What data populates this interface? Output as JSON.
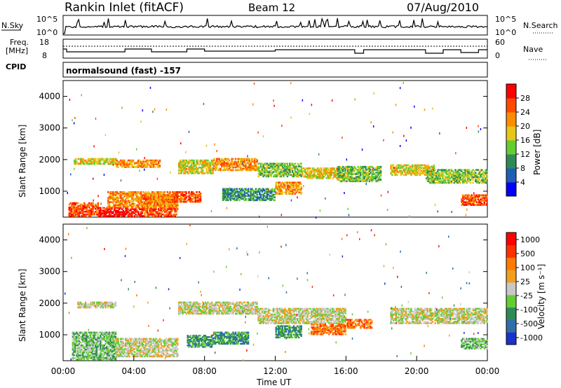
{
  "header": {
    "station": "Rankin Inlet (fitACF)",
    "beam": "Beam 12",
    "date": "07/Aug/2010"
  },
  "noise_panel": {
    "left_label": "N.Sky",
    "right_label": "N.Search",
    "left_ticks": [
      "10^5",
      "10^0"
    ],
    "right_ticks": [
      "10^5",
      "10^0"
    ]
  },
  "freq_panel": {
    "left_label": "Freq.",
    "left_unit": "[MHz]",
    "right_label": "Nave",
    "left_ticks": [
      "18",
      "8"
    ],
    "right_ticks": [
      "60",
      "0"
    ]
  },
  "cpid_panel": {
    "label": "CPID",
    "text": "normalsound (fast) -157"
  },
  "x_axis": {
    "title": "Time UT",
    "ticks": [
      "00:00",
      "04:00",
      "08:00",
      "12:00",
      "16:00",
      "20:00",
      "00:00"
    ]
  },
  "chart_data": [
    {
      "type": "heatmap",
      "name": "power",
      "ylabel": "Slant Range [km]",
      "yticks": [
        1000,
        2000,
        3000,
        4000
      ],
      "ylim": [
        180,
        4500
      ],
      "xlim_hours": [
        0,
        24
      ],
      "colorbar": {
        "title": "Power [dB]",
        "labels": [
          "4",
          "8",
          "12",
          "16",
          "20",
          "24",
          "28"
        ],
        "colors": [
          "#0000ff",
          "#1e5fb4",
          "#2e8b57",
          "#66cc33",
          "#e6c619",
          "#ff8c00",
          "#ff4a00",
          "#ff0000"
        ]
      },
      "regions": [
        {
          "x0": 0.3,
          "x1": 2.0,
          "y0": 200,
          "y1": 650,
          "level": 6
        },
        {
          "x0": 2.0,
          "x1": 4.5,
          "y0": 200,
          "y1": 500,
          "level": 7
        },
        {
          "x0": 4.5,
          "x1": 6.5,
          "y0": 200,
          "y1": 900,
          "level": 6
        },
        {
          "x0": 2.5,
          "x1": 6.5,
          "y0": 500,
          "y1": 1000,
          "level": 5
        },
        {
          "x0": 0.6,
          "x1": 3.0,
          "y0": 1850,
          "y1": 2050,
          "level": 4
        },
        {
          "x0": 3.0,
          "x1": 5.5,
          "y0": 1750,
          "y1": 2000,
          "level": 5
        },
        {
          "x0": 6.2,
          "x1": 7.8,
          "y0": 650,
          "y1": 1000,
          "level": 6
        },
        {
          "x0": 6.5,
          "x1": 8.5,
          "y0": 1550,
          "y1": 2000,
          "level": 4
        },
        {
          "x0": 8.5,
          "x1": 11.0,
          "y0": 1650,
          "y1": 2050,
          "level": 5
        },
        {
          "x0": 11.0,
          "x1": 13.5,
          "y0": 1450,
          "y1": 1900,
          "level": 3
        },
        {
          "x0": 12.0,
          "x1": 13.5,
          "y0": 900,
          "y1": 1300,
          "level": 5
        },
        {
          "x0": 13.5,
          "x1": 16.0,
          "y0": 1400,
          "y1": 1750,
          "level": 4
        },
        {
          "x0": 15.5,
          "x1": 18.0,
          "y0": 1300,
          "y1": 1800,
          "level": 3
        },
        {
          "x0": 18.5,
          "x1": 21.0,
          "y0": 1500,
          "y1": 1850,
          "level": 4
        },
        {
          "x0": 20.5,
          "x1": 24.0,
          "y0": 1250,
          "y1": 1700,
          "level": 3
        },
        {
          "x0": 9.0,
          "x1": 12.0,
          "y0": 700,
          "y1": 1100,
          "level": 2
        },
        {
          "x0": 22.5,
          "x1": 24.0,
          "y0": 550,
          "y1": 900,
          "level": 6
        }
      ]
    },
    {
      "type": "heatmap",
      "name": "velocity",
      "ylabel": "Slant Range [km]",
      "yticks": [
        1000,
        2000,
        3000,
        4000
      ],
      "ylim": [
        180,
        4500
      ],
      "xlim_hours": [
        0,
        24
      ],
      "colorbar": {
        "title": "Velocity [m s⁻¹]",
        "labels": [
          "1000",
          "500",
          "100",
          "25",
          "-25",
          "-100",
          "-500",
          "-1000"
        ],
        "colors": [
          "#1a33cc",
          "#2e6fa8",
          "#2e8b57",
          "#66cc33",
          "#c8c8c8",
          "#f0a020",
          "#ff7a00",
          "#ff3000",
          "#ff0000"
        ]
      },
      "regions": [
        {
          "x0": 0.5,
          "x1": 3.0,
          "y0": 200,
          "y1": 1100,
          "level": 3
        },
        {
          "x0": 3.0,
          "x1": 6.5,
          "y0": 300,
          "y1": 900,
          "level": 4
        },
        {
          "x0": 0.8,
          "x1": 3.0,
          "y0": 1850,
          "y1": 2050,
          "level": 4
        },
        {
          "x0": 6.5,
          "x1": 11.0,
          "y0": 1650,
          "y1": 2050,
          "level": 4
        },
        {
          "x0": 7.0,
          "x1": 8.5,
          "y0": 600,
          "y1": 1000,
          "level": 2
        },
        {
          "x0": 8.5,
          "x1": 10.5,
          "y0": 700,
          "y1": 1100,
          "level": 2
        },
        {
          "x0": 11.0,
          "x1": 16.0,
          "y0": 1350,
          "y1": 1850,
          "level": 4
        },
        {
          "x0": 12.0,
          "x1": 13.5,
          "y0": 900,
          "y1": 1300,
          "level": 2
        },
        {
          "x0": 14.0,
          "x1": 16.0,
          "y0": 1000,
          "y1": 1350,
          "level": 6
        },
        {
          "x0": 16.0,
          "x1": 17.5,
          "y0": 1200,
          "y1": 1500,
          "level": 6
        },
        {
          "x0": 18.5,
          "x1": 24.0,
          "y0": 1350,
          "y1": 1850,
          "level": 4
        },
        {
          "x0": 22.5,
          "x1": 24.0,
          "y0": 550,
          "y1": 900,
          "level": 3
        }
      ]
    }
  ]
}
